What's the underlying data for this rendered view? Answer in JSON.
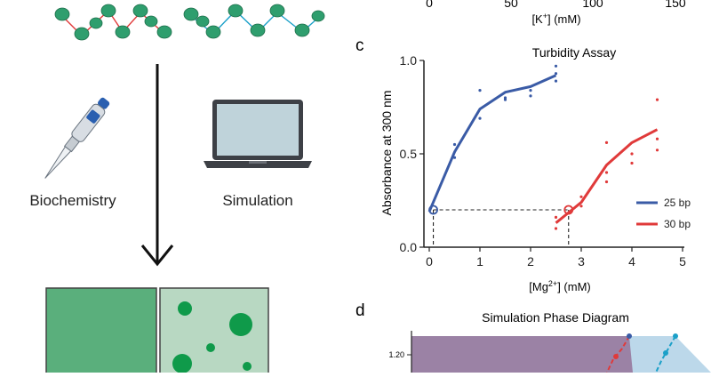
{
  "workflow": {
    "left_label": "Biochemistry",
    "right_label": "Simulation"
  },
  "panel_b_remnant": {
    "ticks": [
      "0",
      "50",
      "100",
      "150"
    ],
    "xlabel_base": "[K",
    "xlabel_sup": "+",
    "xlabel_tail": "] (mM)"
  },
  "panel_c": {
    "letter": "c",
    "title": "Turbidity Assay",
    "ylabel": "Absorbance at 300 nm",
    "xlabel_base": "[Mg",
    "xlabel_sup": "2+",
    "xlabel_tail": "] (mM)",
    "x_ticks": [
      "0",
      "1",
      "2",
      "3",
      "4",
      "5"
    ],
    "y_ticks": [
      "0.0",
      "0.5",
      "1.0"
    ]
  },
  "panel_d": {
    "letter": "d",
    "title": "Simulation Phase Diagram",
    "y_tick": "1.20"
  },
  "colors": {
    "series_25bp": "#3a5ba6",
    "series_30bp": "#e03a3a",
    "linker_25": "#e03a3a",
    "linker_30": "#1aa0c8",
    "nucleosome": "#2f9e6e",
    "homogeneous": "#5aaf7c",
    "droplet_bg": "#b8d8c2",
    "droplet": "#0f9a4a",
    "phase_purple": "#8a6c95",
    "phase_light": "#bcd8ea"
  },
  "chart_data": {
    "type": "line",
    "title": "Turbidity Assay",
    "xlabel": "[Mg2+] (mM)",
    "ylabel": "Absorbance at 300 nm",
    "xlim": [
      0,
      5
    ],
    "ylim": [
      0,
      1.0
    ],
    "legend_position": "right",
    "series": [
      {
        "name": "25 bp",
        "x": [
          0,
          0.5,
          1,
          1.5,
          2,
          2.5
        ],
        "y": [
          0.19,
          0.51,
          0.74,
          0.83,
          0.86,
          0.92
        ],
        "replicates": [
          [
            0.5,
            0.55
          ],
          [
            0.5,
            0.48
          ],
          [
            1,
            0.84
          ],
          [
            1,
            0.69
          ],
          [
            1.5,
            0.8
          ],
          [
            1.5,
            0.79
          ],
          [
            2,
            0.84
          ],
          [
            2,
            0.81
          ],
          [
            2.5,
            0.97
          ],
          [
            2.5,
            0.93
          ],
          [
            2.5,
            0.89
          ]
        ],
        "threshold_marker": [
          0.08,
          0.2
        ]
      },
      {
        "name": "30 bp",
        "x": [
          2.5,
          3,
          3.5,
          4,
          4.5
        ],
        "y": [
          0.13,
          0.24,
          0.44,
          0.56,
          0.63
        ],
        "replicates": [
          [
            2.5,
            0.1
          ],
          [
            2.5,
            0.16
          ],
          [
            3,
            0.22
          ],
          [
            3,
            0.27
          ],
          [
            3.5,
            0.56
          ],
          [
            3.5,
            0.35
          ],
          [
            3.5,
            0.4
          ],
          [
            4,
            0.5
          ],
          [
            4,
            0.45
          ],
          [
            4.5,
            0.79
          ],
          [
            4.5,
            0.58
          ],
          [
            4.5,
            0.52
          ]
        ],
        "threshold_marker": [
          2.75,
          0.2
        ]
      }
    ]
  }
}
